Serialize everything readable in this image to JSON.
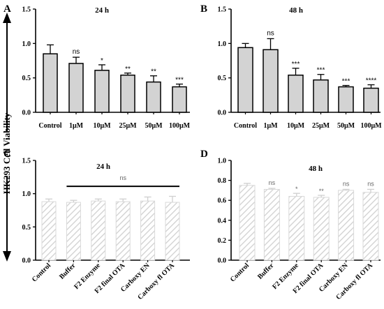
{
  "ylabel": "HK293 Cell Viability",
  "chart_data": [
    {
      "panel": "A",
      "title": "24 h",
      "type": "bar",
      "style": "solid",
      "categories": [
        "Control",
        "1μM",
        "10μM",
        "25μM",
        "50μM",
        "100μM"
      ],
      "values": [
        0.85,
        0.71,
        0.61,
        0.54,
        0.44,
        0.37
      ],
      "errors": [
        0.13,
        0.09,
        0.08,
        0.03,
        0.09,
        0.04
      ],
      "significance": [
        "",
        "ns",
        "*",
        "**",
        "**",
        "***"
      ],
      "ylim": [
        0,
        1.5
      ],
      "yticks": [
        "0.0",
        "0.5",
        "1.0",
        "1.5"
      ],
      "colors": {
        "bar": "#d3d3d3",
        "edge": "#000000"
      }
    },
    {
      "panel": "B",
      "title": "48 h",
      "type": "bar",
      "style": "solid",
      "categories": [
        "Control",
        "1μM",
        "10μM",
        "25μM",
        "50μM",
        "100μM"
      ],
      "values": [
        0.94,
        0.91,
        0.54,
        0.47,
        0.37,
        0.35
      ],
      "errors": [
        0.06,
        0.16,
        0.1,
        0.08,
        0.02,
        0.05
      ],
      "significance": [
        "",
        "ns",
        "***",
        "***",
        "***",
        "****"
      ],
      "ylim": [
        0,
        1.5
      ],
      "yticks": [
        "0.0",
        "0.5",
        "1.0",
        "1.5"
      ],
      "colors": {
        "bar": "#d3d3d3",
        "edge": "#000000"
      }
    },
    {
      "panel": "C",
      "title": "24 h",
      "type": "bar",
      "style": "hatched",
      "categories": [
        "Control",
        "Buffer",
        "F2 Enzyme",
        "F2 final OTA",
        "Carboxy EN",
        "Carboxy fl OTA"
      ],
      "values": [
        0.88,
        0.87,
        0.89,
        0.88,
        0.89,
        0.87
      ],
      "errors": [
        0.04,
        0.03,
        0.03,
        0.04,
        0.06,
        0.09
      ],
      "significance": [
        "",
        "",
        "",
        "",
        "",
        ""
      ],
      "group_annotation": "ns",
      "ylim": [
        0,
        1.5
      ],
      "yticks": [
        "0.0",
        "0.5",
        "1.0",
        "1.5"
      ],
      "colors": {
        "bar": "#d9d9d9",
        "edge": "#d9d9d9"
      }
    },
    {
      "panel": "D",
      "title": "48 h",
      "type": "bar",
      "style": "hatched",
      "categories": [
        "Control",
        "Buffer",
        "F2 Enzyme",
        "F2 final OTA",
        "Carboxy EN",
        "Carboxy fl OTA"
      ],
      "values": [
        0.75,
        0.71,
        0.64,
        0.63,
        0.7,
        0.68
      ],
      "errors": [
        0.02,
        0.01,
        0.03,
        0.02,
        0.01,
        0.03
      ],
      "significance": [
        "",
        "ns",
        "*",
        "**",
        "ns",
        "ns"
      ],
      "ylim": [
        0,
        1.0
      ],
      "yticks": [
        "0.0",
        "0.2",
        "0.4",
        "0.6",
        "0.8",
        "1.0"
      ],
      "colors": {
        "bar": "#d9d9d9",
        "edge": "#d9d9d9"
      }
    }
  ]
}
